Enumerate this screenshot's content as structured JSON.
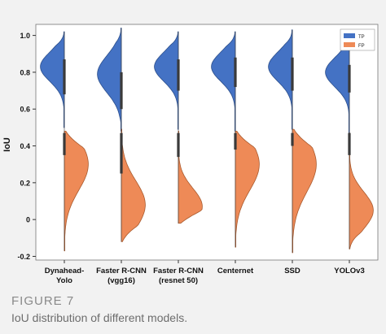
{
  "caption": {
    "figure_label": "FIGURE 7",
    "text": "IoU distribution of different models."
  },
  "colors": {
    "tp": "#4472c4",
    "fp": "#ee8a57",
    "tp_edge": "#2b4e8a",
    "fp_edge": "#a85a2e",
    "box": "#3a3a3a"
  },
  "chart_data": {
    "type": "violin",
    "ylabel": "IoU",
    "xlabel": "",
    "ylim": [
      -0.22,
      1.06
    ],
    "yticks": [
      -0.2,
      0,
      0.2,
      0.4,
      0.6,
      0.8,
      1.0
    ],
    "ytick_labels": [
      "-0.2",
      "0",
      "0.2",
      "0.4",
      "0.6",
      "0.8",
      "1.0"
    ],
    "legend": {
      "position": "top-right",
      "entries": [
        {
          "label": "TP",
          "color": "#4472c4"
        },
        {
          "label": "FP",
          "color": "#ee8a57"
        }
      ]
    },
    "categories": [
      "Dynahead-\nYolo",
      "Faster R-CNN\n(vgg16)",
      "Faster R-CNN\n(resnet 50)",
      "Centernet",
      "SSD",
      "YOLOv3"
    ],
    "series": [
      {
        "name": "TP",
        "side": "left",
        "range": [
          [
            0.5,
            1.02
          ],
          [
            0.48,
            1.04
          ],
          [
            0.49,
            1.02
          ],
          [
            0.48,
            1.02
          ],
          [
            0.49,
            1.03
          ],
          [
            0.47,
            1.02
          ]
        ],
        "mode": [
          0.83,
          0.79,
          0.83,
          0.83,
          0.83,
          0.8
        ],
        "spread": [
          0.08,
          0.1,
          0.08,
          0.08,
          0.08,
          0.08
        ],
        "box_quartiles": [
          [
            0.68,
            0.87
          ],
          [
            0.6,
            0.8
          ],
          [
            0.7,
            0.87
          ],
          [
            0.72,
            0.88
          ],
          [
            0.7,
            0.88
          ],
          [
            0.69,
            0.84
          ]
        ]
      },
      {
        "name": "FP",
        "side": "right",
        "range": [
          [
            -0.17,
            0.48
          ],
          [
            -0.12,
            0.49
          ],
          [
            -0.02,
            0.48
          ],
          [
            -0.15,
            0.48
          ],
          [
            -0.18,
            0.49
          ],
          [
            -0.16,
            0.47
          ]
        ],
        "mode": [
          0.3,
          0.08,
          0.07,
          0.3,
          0.3,
          0.05
        ],
        "spread": [
          0.14,
          0.13,
          0.1,
          0.14,
          0.15,
          0.1
        ],
        "box_quartiles": [
          [
            0.35,
            0.47
          ],
          [
            0.25,
            0.47
          ],
          [
            0.34,
            0.47
          ],
          [
            0.38,
            0.47
          ],
          [
            0.4,
            0.47
          ],
          [
            0.35,
            0.47
          ]
        ]
      }
    ]
  }
}
